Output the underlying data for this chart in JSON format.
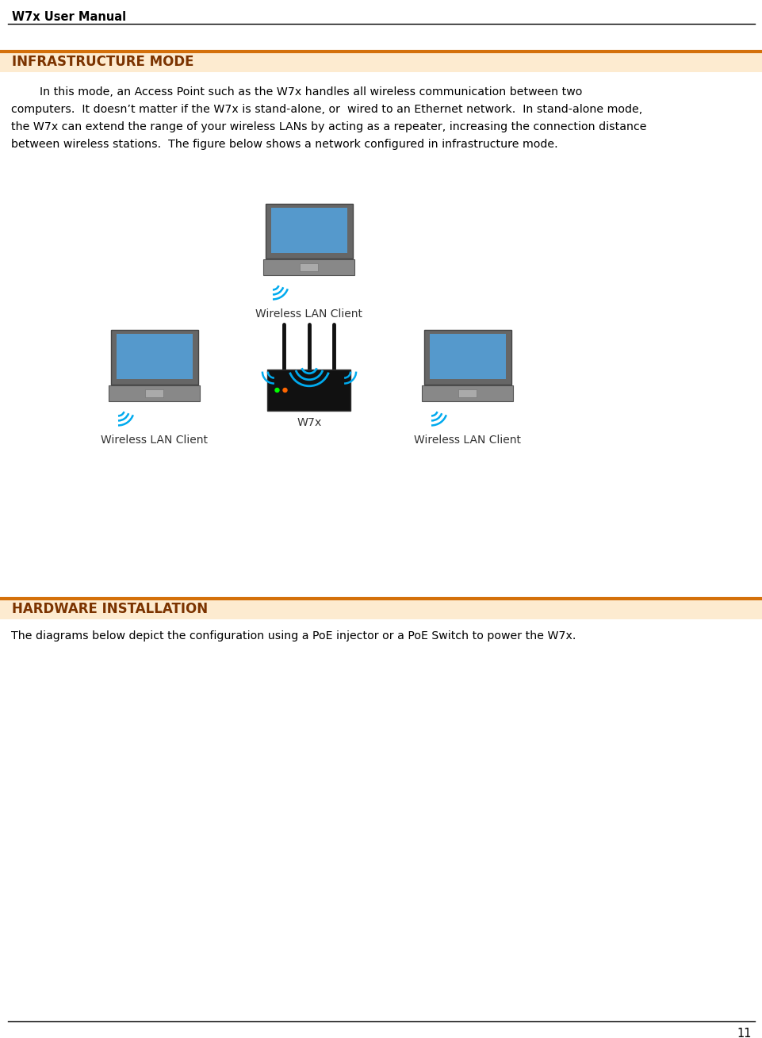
{
  "page_title": "W7x User Manual",
  "page_number": "11",
  "header_line_color": "#000000",
  "orange_line_color": "#D4700A",
  "section1_title": "INFRASTRUCTURE MODE",
  "section1_title_color": "#7B3300",
  "section1_bg_color": "#FDEBD0",
  "section1_text_line1": "        In this mode, an Access Point such as the W7x handles all wireless communication between two",
  "section1_text_line2": "computers.  It doesn’t matter if the W7x is stand-alone, or  wired to an Ethernet network.  In stand-alone mode,",
  "section1_text_line3": "the W7x can extend the range of your wireless LANs by acting as a repeater, increasing the connection distance",
  "section1_text_line4": "between wireless stations.  The figure below shows a network configured in infrastructure mode.",
  "section2_title": "HARDWARE INSTALLATION",
  "section2_title_color": "#7B3300",
  "section2_bg_color": "#FDEBD0",
  "section2_text": "The diagrams below depict the configuration using a PoE injector or a PoE Switch to power the W7x.",
  "label_top": "Wireless LAN Client",
  "label_left": "Wireless LAN Client",
  "label_right": "Wireless LAN Client",
  "label_center": "W7x",
  "bg_color": "#FFFFFF",
  "text_color": "#000000",
  "diagram_text_color": "#333333"
}
